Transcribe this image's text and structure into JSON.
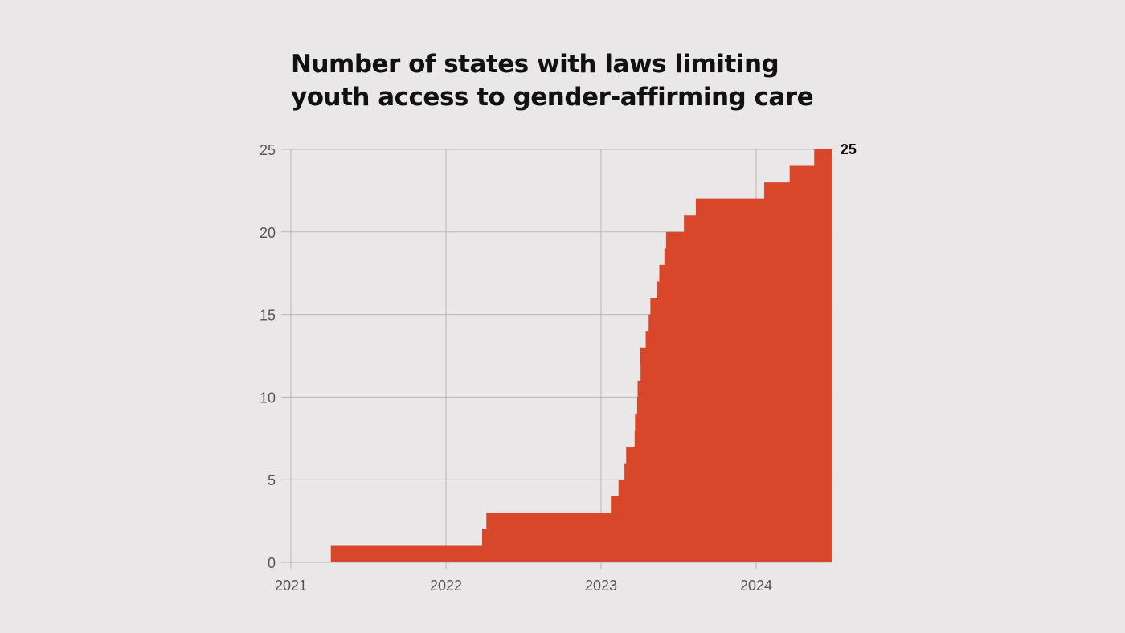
{
  "chart_data": {
    "type": "area",
    "subtype": "step",
    "title": "Number of states with laws limiting youth access to gender-affirming care",
    "xlabel": "",
    "ylabel": "",
    "xlim": [
      "2021-01-01",
      "2024-06-29"
    ],
    "ylim": [
      0,
      25
    ],
    "x_ticks": [
      "2021",
      "2022",
      "2023",
      "2024"
    ],
    "y_ticks": [
      0,
      5,
      10,
      15,
      20,
      25
    ],
    "grid": true,
    "color": "#d9472b",
    "end_label": "25",
    "steps": [
      {
        "date": "2021-04-06",
        "value": 1
      },
      {
        "date": "2022-03-28",
        "value": 2
      },
      {
        "date": "2022-04-07",
        "value": 3
      },
      {
        "date": "2023-01-25",
        "value": 4
      },
      {
        "date": "2023-02-12",
        "value": 5
      },
      {
        "date": "2023-02-26",
        "value": 6
      },
      {
        "date": "2023-03-02",
        "value": 7
      },
      {
        "date": "2023-03-22",
        "value": 8
      },
      {
        "date": "2023-03-23",
        "value": 9
      },
      {
        "date": "2023-03-28",
        "value": 10
      },
      {
        "date": "2023-03-29",
        "value": 11
      },
      {
        "date": "2023-04-04",
        "value": 13
      },
      {
        "date": "2023-04-17",
        "value": 14
      },
      {
        "date": "2023-04-24",
        "value": 15
      },
      {
        "date": "2023-04-28",
        "value": 16
      },
      {
        "date": "2023-05-14",
        "value": 17
      },
      {
        "date": "2023-05-19",
        "value": 18
      },
      {
        "date": "2023-05-31",
        "value": 19
      },
      {
        "date": "2023-06-04",
        "value": 20
      },
      {
        "date": "2023-07-16",
        "value": 21
      },
      {
        "date": "2023-08-13",
        "value": 22
      },
      {
        "date": "2024-01-21",
        "value": 23
      },
      {
        "date": "2024-03-21",
        "value": 24
      },
      {
        "date": "2024-05-18",
        "value": 25
      }
    ],
    "end_date": "2024-06-29"
  }
}
